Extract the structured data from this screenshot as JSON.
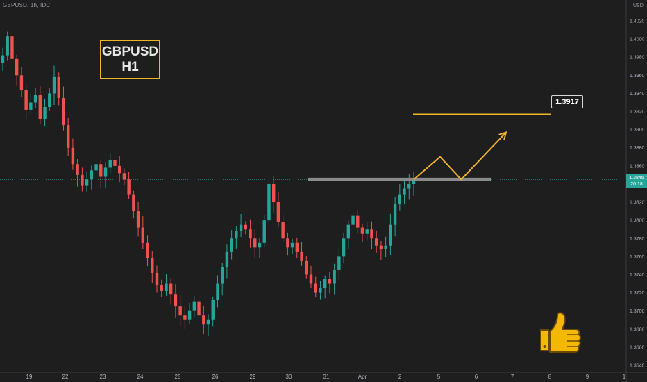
{
  "header": {
    "ticker": "GBPUSD, 1h, IDC"
  },
  "annotation": {
    "line1": "GBPUSD",
    "line2": "H1"
  },
  "target": {
    "label": "1.3917"
  },
  "price_badge": {
    "price": "1.3845",
    "countdown": "20:18"
  },
  "colors": {
    "up": "#26a69a",
    "down": "#ef5350",
    "accent": "#f0b429",
    "background": "#1e1e1e",
    "resistance": "#8a8a8a",
    "current_price_line": "#26a69a"
  },
  "icons": {
    "thumbs_up": "thumbs-up-icon"
  },
  "chart_data": {
    "type": "candlestick",
    "y_unit": "USD",
    "ylim": [
      1.3635,
      1.4045
    ],
    "y_ticks": [
      "1.4020",
      "1.4000",
      "1.3980",
      "1.3960",
      "1.3940",
      "1.3920",
      "1.3900",
      "1.3880",
      "1.3860",
      "1.3840",
      "1.3820",
      "1.3800",
      "1.3780",
      "1.3760",
      "1.3740",
      "1.3720",
      "1.3700",
      "1.3680",
      "1.3660",
      "1.3640"
    ],
    "x_ticks": [
      "19",
      "22",
      "23",
      "24",
      "25",
      "26",
      "29",
      "30",
      "31",
      "Apr",
      "2",
      "5",
      "6",
      "7",
      "8",
      "9",
      "1"
    ],
    "current_price": 1.3845,
    "resistance_level": 1.3845,
    "target_level": 1.3917,
    "projection": [
      {
        "x": 0.0,
        "y": 1.3845
      },
      {
        "x": 1.0,
        "y": 1.387
      },
      {
        "x": 1.8,
        "y": 1.3845
      },
      {
        "x": 3.5,
        "y": 1.3897
      }
    ],
    "series": [
      {
        "values": [
          1.3982,
          1.4003,
          1.3978,
          1.396,
          1.3944,
          1.3922,
          1.393,
          1.3938,
          1.3912,
          1.3925,
          1.394,
          1.3958,
          1.3935,
          1.3905,
          1.388,
          1.3862,
          1.385,
          1.3838,
          1.3845,
          1.3855,
          1.3862,
          1.3848,
          1.3858,
          1.3866,
          1.386,
          1.3852,
          1.3845,
          1.3828,
          1.381,
          1.3792,
          1.3775,
          1.3758,
          1.3742,
          1.3728,
          1.3722,
          1.373,
          1.3718,
          1.3705,
          1.3695,
          1.369,
          1.37,
          1.371,
          1.3695,
          1.3685,
          1.369,
          1.3712,
          1.373,
          1.3748,
          1.3765,
          1.378,
          1.3788,
          1.3795,
          1.379,
          1.378,
          1.377,
          1.3775,
          1.38,
          1.384,
          1.382,
          1.3798,
          1.378,
          1.377,
          1.3775,
          1.3765,
          1.3755,
          1.374,
          1.373,
          1.372,
          1.3725,
          1.3735,
          1.373,
          1.3745,
          1.376,
          1.378,
          1.3795,
          1.3805,
          1.3792,
          1.3785,
          1.379,
          1.378,
          1.3772,
          1.3768,
          1.3772,
          1.3795,
          1.3818,
          1.3828,
          1.3835,
          1.384,
          1.3845
        ]
      }
    ]
  }
}
